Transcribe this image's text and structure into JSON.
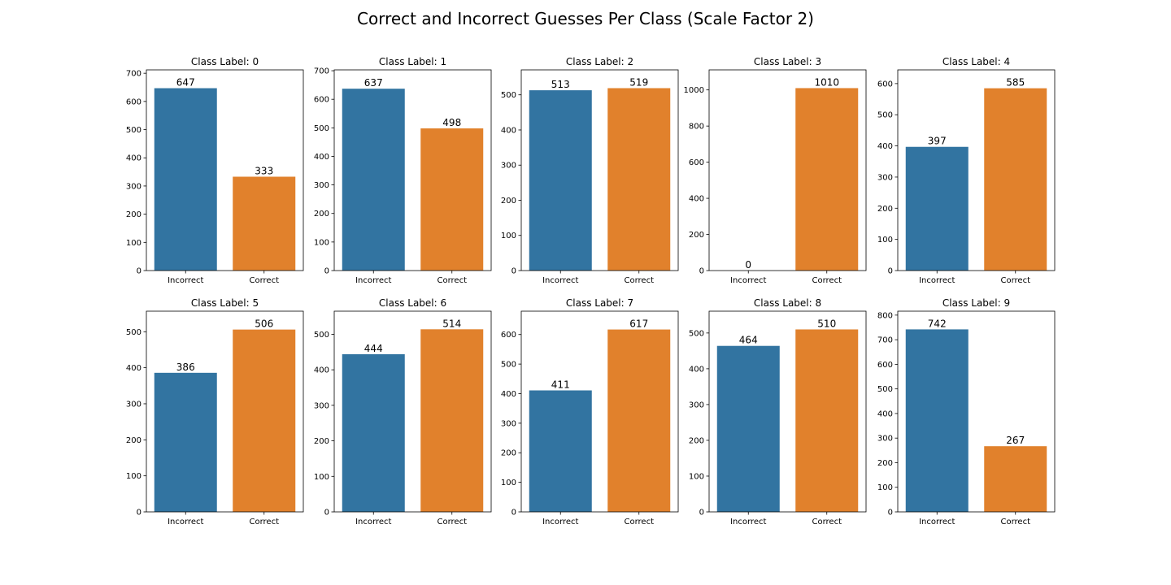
{
  "figure": {
    "title": "Correct and Incorrect Guesses Per Class (Scale Factor 2)"
  },
  "colors": {
    "incorrect": "#3274a1",
    "correct": "#e1812c"
  },
  "chart_data": [
    {
      "type": "bar",
      "title": "Class Label: 0",
      "categories": [
        "Incorrect",
        "Correct"
      ],
      "values": [
        647,
        333
      ],
      "data_labels": [
        "647",
        "333"
      ],
      "ylim": [
        0,
        712
      ],
      "yticks": [
        0,
        100,
        200,
        300,
        400,
        500,
        600,
        700
      ],
      "grid": false
    },
    {
      "type": "bar",
      "title": "Class Label: 1",
      "categories": [
        "Incorrect",
        "Correct"
      ],
      "values": [
        637,
        498
      ],
      "data_labels": [
        "637",
        "498"
      ],
      "ylim": [
        0,
        703
      ],
      "yticks": [
        0,
        100,
        200,
        300,
        400,
        500,
        600,
        700
      ],
      "grid": false
    },
    {
      "type": "bar",
      "title": "Class Label: 2",
      "categories": [
        "Incorrect",
        "Correct"
      ],
      "values": [
        513,
        519
      ],
      "data_labels": [
        "513",
        "519"
      ],
      "ylim": [
        0,
        571
      ],
      "yticks": [
        0,
        100,
        200,
        300,
        400,
        500
      ],
      "grid": false
    },
    {
      "type": "bar",
      "title": "Class Label: 3",
      "categories": [
        "Incorrect",
        "Correct"
      ],
      "values": [
        0,
        1010
      ],
      "data_labels": [
        "0",
        "1010"
      ],
      "ylim": [
        0,
        1111
      ],
      "yticks": [
        0,
        200,
        400,
        600,
        800,
        1000
      ],
      "grid": false
    },
    {
      "type": "bar",
      "title": "Class Label: 4",
      "categories": [
        "Incorrect",
        "Correct"
      ],
      "values": [
        397,
        585
      ],
      "data_labels": [
        "397",
        "585"
      ],
      "ylim": [
        0,
        644
      ],
      "yticks": [
        0,
        100,
        200,
        300,
        400,
        500,
        600
      ],
      "grid": false
    },
    {
      "type": "bar",
      "title": "Class Label: 5",
      "categories": [
        "Incorrect",
        "Correct"
      ],
      "values": [
        386,
        506
      ],
      "data_labels": [
        "386",
        "506"
      ],
      "ylim": [
        0,
        557
      ],
      "yticks": [
        0,
        100,
        200,
        300,
        400,
        500
      ],
      "grid": false
    },
    {
      "type": "bar",
      "title": "Class Label: 6",
      "categories": [
        "Incorrect",
        "Correct"
      ],
      "values": [
        444,
        514
      ],
      "data_labels": [
        "444",
        "514"
      ],
      "ylim": [
        0,
        565
      ],
      "yticks": [
        0,
        100,
        200,
        300,
        400,
        500
      ],
      "grid": false
    },
    {
      "type": "bar",
      "title": "Class Label: 7",
      "categories": [
        "Incorrect",
        "Correct"
      ],
      "values": [
        411,
        617
      ],
      "data_labels": [
        "411",
        "617"
      ],
      "ylim": [
        0,
        679
      ],
      "yticks": [
        0,
        100,
        200,
        300,
        400,
        500,
        600
      ],
      "grid": false
    },
    {
      "type": "bar",
      "title": "Class Label: 8",
      "categories": [
        "Incorrect",
        "Correct"
      ],
      "values": [
        464,
        510
      ],
      "data_labels": [
        "464",
        "510"
      ],
      "ylim": [
        0,
        561
      ],
      "yticks": [
        0,
        100,
        200,
        300,
        400,
        500
      ],
      "grid": false
    },
    {
      "type": "bar",
      "title": "Class Label: 9",
      "categories": [
        "Incorrect",
        "Correct"
      ],
      "values": [
        742,
        267
      ],
      "data_labels": [
        "742",
        "267"
      ],
      "ylim": [
        0,
        816
      ],
      "yticks": [
        0,
        100,
        200,
        300,
        400,
        500,
        600,
        700,
        800
      ],
      "grid": false
    }
  ]
}
